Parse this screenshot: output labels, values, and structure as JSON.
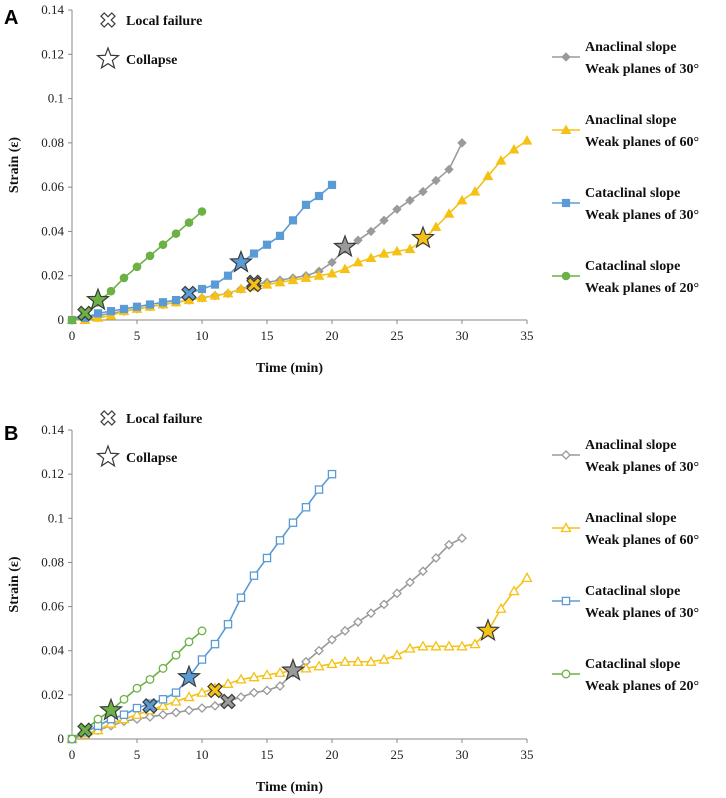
{
  "colors": {
    "gray": "#9a9a9a",
    "yellow": "#f5c114",
    "blue": "#5b9bd5",
    "green": "#6bb144",
    "axis": "#888888"
  },
  "chart_data": [
    {
      "type": "line",
      "panel_label": "A",
      "xlabel": "Time (min)",
      "ylabel": "Strain (ε)",
      "xlim": [
        0,
        35
      ],
      "ylim": [
        0,
        0.14
      ],
      "xticks": [
        "0",
        "5",
        "10",
        "15",
        "20",
        "25",
        "30",
        "35"
      ],
      "yticks": [
        "0",
        "0.02",
        "0.04",
        "0.06",
        "0.08",
        "0.1",
        "0.12",
        "0.14"
      ],
      "marker_legend": {
        "local_failure": "Local failure",
        "collapse": "Collapse"
      },
      "series": [
        {
          "name": "Anaclinal slope Weak planes of 30°",
          "label_line1": "Anaclinal slope",
          "label_line2": "Weak planes of 30°",
          "color": "#9a9a9a",
          "marker": "diamond",
          "filled": true,
          "x": [
            0,
            1,
            2,
            3,
            4,
            5,
            6,
            7,
            8,
            9,
            10,
            11,
            12,
            13,
            14,
            15,
            16,
            17,
            18,
            19,
            20,
            21,
            22,
            23,
            24,
            25,
            26,
            27,
            28,
            29,
            30
          ],
          "y": [
            0,
            0.001,
            0.002,
            0.003,
            0.004,
            0.005,
            0.006,
            0.007,
            0.008,
            0.009,
            0.01,
            0.011,
            0.012,
            0.014,
            0.016,
            0.017,
            0.018,
            0.019,
            0.02,
            0.022,
            0.026,
            0.032,
            0.036,
            0.04,
            0.045,
            0.05,
            0.054,
            0.058,
            0.063,
            0.068,
            0.08
          ]
        },
        {
          "name": "Anaclinal slope Weak planes of 60°",
          "label_line1": "Anaclinal slope",
          "label_line2": "Weak planes of 60°",
          "color": "#f5c114",
          "marker": "triangle",
          "filled": true,
          "x": [
            0,
            1,
            2,
            3,
            4,
            5,
            6,
            7,
            8,
            9,
            10,
            11,
            12,
            13,
            14,
            15,
            16,
            17,
            18,
            19,
            20,
            21,
            22,
            23,
            24,
            25,
            26,
            27,
            28,
            29,
            30,
            31,
            32,
            33,
            34,
            35
          ],
          "y": [
            0,
            0.0,
            0.001,
            0.002,
            0.004,
            0.005,
            0.006,
            0.007,
            0.008,
            0.009,
            0.01,
            0.011,
            0.012,
            0.014,
            0.015,
            0.016,
            0.017,
            0.018,
            0.019,
            0.02,
            0.021,
            0.023,
            0.026,
            0.028,
            0.03,
            0.031,
            0.032,
            0.036,
            0.042,
            0.048,
            0.054,
            0.058,
            0.065,
            0.072,
            0.077,
            0.081
          ]
        },
        {
          "name": "Cataclinal slope Weak planes of 30°",
          "label_line1": "Cataclinal slope",
          "label_line2": "Weak planes of 30°",
          "color": "#5b9bd5",
          "marker": "square",
          "filled": true,
          "x": [
            0,
            1,
            2,
            3,
            4,
            5,
            6,
            7,
            8,
            9,
            10,
            11,
            12,
            13,
            14,
            15,
            16,
            17,
            18,
            19,
            20
          ],
          "y": [
            0,
            0.001,
            0.003,
            0.004,
            0.005,
            0.006,
            0.007,
            0.008,
            0.009,
            0.012,
            0.014,
            0.016,
            0.02,
            0.026,
            0.03,
            0.034,
            0.038,
            0.045,
            0.052,
            0.056,
            0.061
          ]
        },
        {
          "name": "Cataclinal slope Weak planes of 20°",
          "label_line1": "Cataclinal slope",
          "label_line2": "Weak planes of 20°",
          "color": "#6bb144",
          "marker": "circle",
          "filled": true,
          "x": [
            0,
            1,
            2,
            3,
            4,
            5,
            6,
            7,
            8,
            9,
            10
          ],
          "y": [
            0,
            0.003,
            0.008,
            0.013,
            0.019,
            0.024,
            0.029,
            0.034,
            0.039,
            0.044,
            0.049
          ]
        }
      ],
      "events": [
        {
          "kind": "local_failure",
          "series": 3,
          "x": 1,
          "y": 0.003
        },
        {
          "kind": "collapse",
          "series": 3,
          "x": 2,
          "y": 0.009
        },
        {
          "kind": "local_failure",
          "series": 2,
          "x": 9,
          "y": 0.012
        },
        {
          "kind": "collapse",
          "series": 2,
          "x": 13,
          "y": 0.026
        },
        {
          "kind": "local_failure",
          "series": 0,
          "x": 14,
          "y": 0.017
        },
        {
          "kind": "local_failure",
          "series": 1,
          "x": 14,
          "y": 0.016
        },
        {
          "kind": "collapse",
          "series": 0,
          "x": 21,
          "y": 0.033
        },
        {
          "kind": "collapse",
          "series": 1,
          "x": 27,
          "y": 0.037
        }
      ]
    },
    {
      "type": "line",
      "panel_label": "B",
      "xlabel": "Time (min)",
      "ylabel": "Strain (ε)",
      "xlim": [
        0,
        35
      ],
      "ylim": [
        0,
        0.14
      ],
      "xticks": [
        "0",
        "5",
        "10",
        "15",
        "20",
        "25",
        "30",
        "35"
      ],
      "yticks": [
        "0",
        "0.02",
        "0.04",
        "0.06",
        "0.08",
        "0.1",
        "0.12",
        "0.14"
      ],
      "marker_legend": {
        "local_failure": "Local failure",
        "collapse": "Collapse"
      },
      "series": [
        {
          "name": "Anaclinal slope Weak planes of 30°",
          "label_line1": "Anaclinal slope",
          "label_line2": "Weak planes of 30°",
          "color": "#9a9a9a",
          "marker": "diamond",
          "filled": false,
          "x": [
            0,
            1,
            2,
            3,
            4,
            5,
            6,
            7,
            8,
            9,
            10,
            11,
            12,
            13,
            14,
            15,
            16,
            17,
            18,
            19,
            20,
            21,
            22,
            23,
            24,
            25,
            26,
            27,
            28,
            29,
            30
          ],
          "y": [
            0,
            0.002,
            0.004,
            0.006,
            0.008,
            0.009,
            0.01,
            0.011,
            0.012,
            0.013,
            0.014,
            0.015,
            0.017,
            0.019,
            0.021,
            0.022,
            0.024,
            0.03,
            0.035,
            0.04,
            0.045,
            0.049,
            0.053,
            0.057,
            0.061,
            0.066,
            0.071,
            0.076,
            0.082,
            0.088,
            0.091
          ]
        },
        {
          "name": "Anaclinal slope Weak planes of 60°",
          "label_line1": "Anaclinal slope",
          "label_line2": "Weak planes of 60°",
          "color": "#f5c114",
          "marker": "triangle",
          "filled": false,
          "x": [
            0,
            1,
            2,
            3,
            4,
            5,
            6,
            7,
            8,
            9,
            10,
            11,
            12,
            13,
            14,
            15,
            16,
            17,
            18,
            19,
            20,
            21,
            22,
            23,
            24,
            25,
            26,
            27,
            28,
            29,
            30,
            31,
            32,
            33,
            34,
            35
          ],
          "y": [
            0,
            0.002,
            0.004,
            0.007,
            0.009,
            0.011,
            0.013,
            0.015,
            0.017,
            0.019,
            0.021,
            0.023,
            0.025,
            0.027,
            0.028,
            0.029,
            0.03,
            0.031,
            0.032,
            0.033,
            0.034,
            0.035,
            0.035,
            0.035,
            0.036,
            0.038,
            0.041,
            0.042,
            0.042,
            0.042,
            0.042,
            0.043,
            0.049,
            0.059,
            0.067,
            0.073
          ]
        },
        {
          "name": "Cataclinal slope Weak planes of 30°",
          "label_line1": "Cataclinal slope",
          "label_line2": "Weak planes of 30°",
          "color": "#5b9bd5",
          "marker": "square",
          "filled": false,
          "x": [
            0,
            1,
            2,
            3,
            4,
            5,
            6,
            7,
            8,
            9,
            10,
            11,
            12,
            13,
            14,
            15,
            16,
            17,
            18,
            19,
            20
          ],
          "y": [
            0,
            0.003,
            0.006,
            0.009,
            0.011,
            0.014,
            0.016,
            0.018,
            0.021,
            0.028,
            0.036,
            0.043,
            0.052,
            0.064,
            0.074,
            0.082,
            0.09,
            0.098,
            0.105,
            0.113,
            0.12
          ]
        },
        {
          "name": "Cataclinal slope Weak planes of 20°",
          "label_line1": "Cataclinal slope",
          "label_line2": "Weak planes of 20°",
          "color": "#6bb144",
          "marker": "circle",
          "filled": false,
          "x": [
            0,
            1,
            2,
            3,
            4,
            5,
            6,
            7,
            8,
            9,
            10
          ],
          "y": [
            0,
            0.004,
            0.009,
            0.013,
            0.018,
            0.023,
            0.027,
            0.032,
            0.038,
            0.044,
            0.049
          ]
        }
      ],
      "events": [
        {
          "kind": "local_failure",
          "series": 3,
          "x": 1,
          "y": 0.004
        },
        {
          "kind": "collapse",
          "series": 3,
          "x": 3,
          "y": 0.013
        },
        {
          "kind": "local_failure",
          "series": 2,
          "x": 6,
          "y": 0.015
        },
        {
          "kind": "collapse",
          "series": 2,
          "x": 9,
          "y": 0.028
        },
        {
          "kind": "local_failure",
          "series": 1,
          "x": 11,
          "y": 0.022
        },
        {
          "kind": "local_failure",
          "series": 0,
          "x": 12,
          "y": 0.017
        },
        {
          "kind": "collapse",
          "series": 0,
          "x": 17,
          "y": 0.031
        },
        {
          "kind": "collapse",
          "series": 1,
          "x": 32,
          "y": 0.049
        }
      ]
    }
  ]
}
